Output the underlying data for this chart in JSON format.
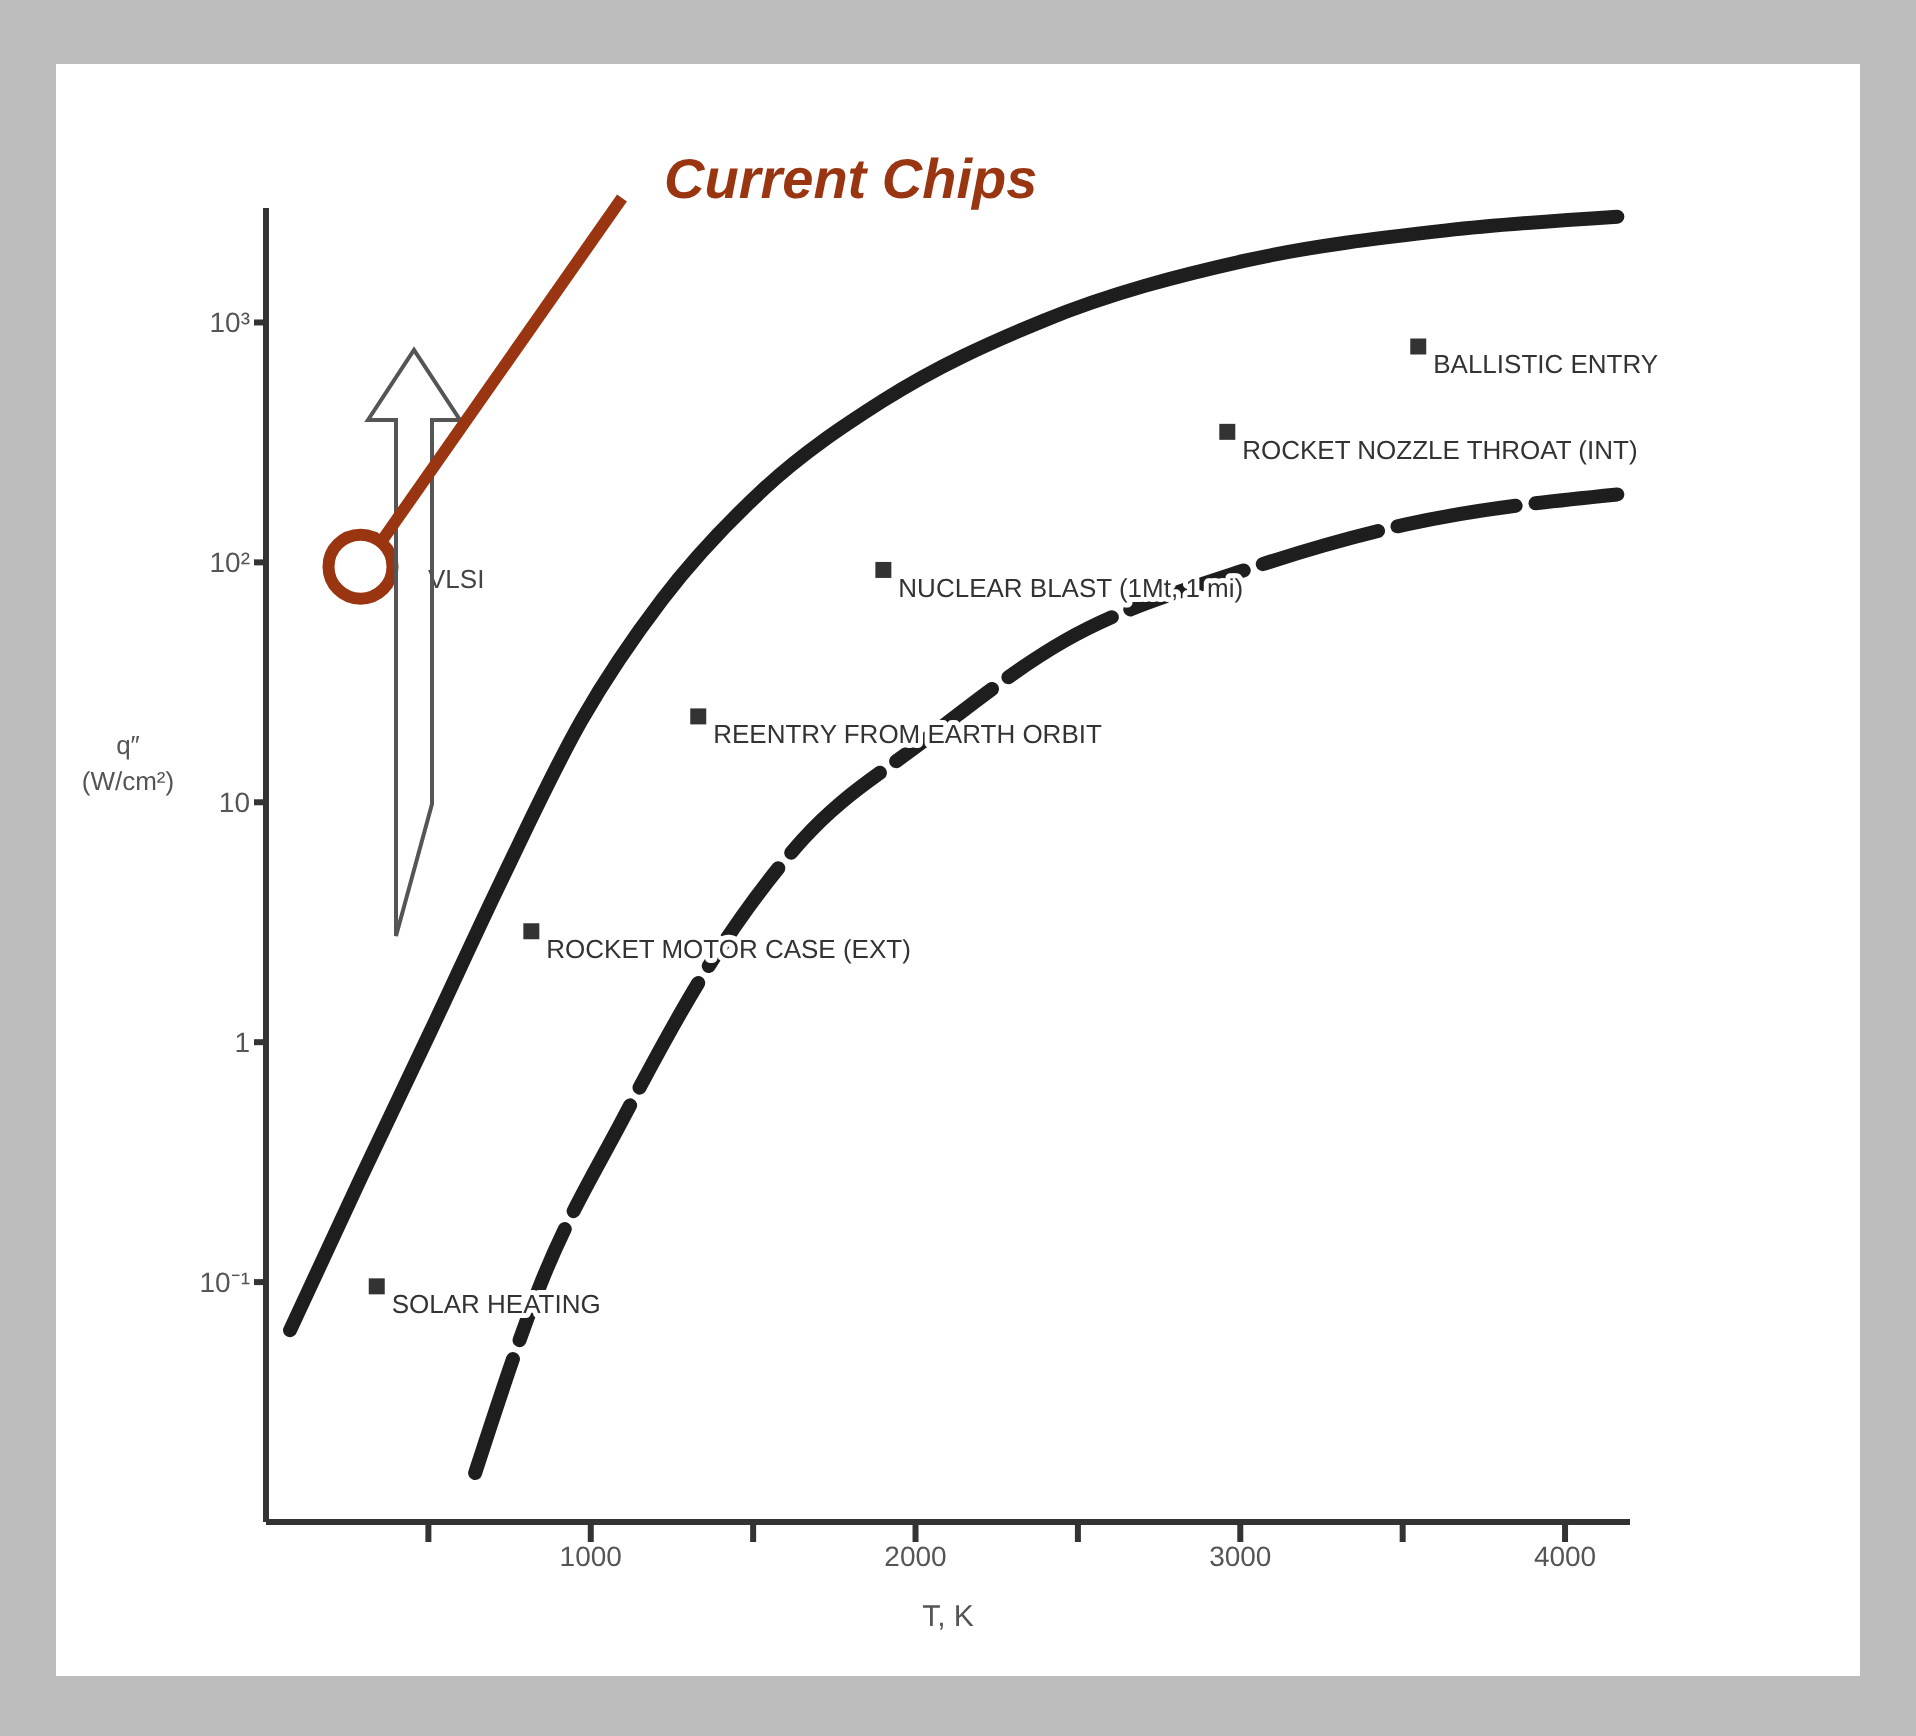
{
  "chart_data": {
    "type": "line",
    "xlabel": "T, K",
    "ylabel": "q″ (W/cm²)",
    "log": "y",
    "xlim": [
      0,
      4200
    ],
    "ylim": [
      0.01,
      3000
    ],
    "xticks": [
      {
        "value": 500,
        "label": null
      },
      1000,
      {
        "value": 1500,
        "label": null
      },
      2000,
      {
        "value": 2500,
        "label": null
      },
      3000,
      {
        "value": 3500,
        "label": null
      },
      4000
    ],
    "yticks": [
      {
        "value": 0.1,
        "label": "10⁻¹"
      },
      1,
      10,
      {
        "value": 100,
        "label": "10²"
      },
      {
        "value": 1000,
        "label": "10³"
      }
    ],
    "grid": false,
    "legend": false,
    "marker": "none",
    "series": [
      {
        "type": "line",
        "color": "#1e1e1e",
        "line_style": "solid",
        "x": [
          74,
          291,
          508,
          724,
          972,
          1220,
          1529,
          1901,
          2396,
          3015,
          3635,
          4161
        ],
        "values": [
          0.063,
          0.27,
          1.12,
          4.7,
          22,
          70,
          200,
          473,
          1020,
          1810,
          2420,
          2760
        ]
      },
      {
        "type": "line",
        "color": "#1e1e1e",
        "line_style": "dashed",
        "x": [
          644,
          848,
          1096,
          1375,
          1653,
          2025,
          2458,
          3015,
          3511,
          4161
        ],
        "values": [
          0.016,
          0.1,
          0.47,
          2.2,
          7,
          18,
          47,
          93,
          144,
          192
        ]
      },
      {
        "type": "scatter",
        "name": "Current Chips",
        "color": "#9a3512",
        "marker": "circle",
        "x": [
          291
        ],
        "values": [
          96
        ]
      },
      {
        "type": "scatter",
        "color": "#333333",
        "marker": "square",
        "x": [
          341,
          817,
          1331,
          1901,
          2960,
          3548
        ],
        "values": [
          0.096,
          2.9,
          22.8,
          93,
          350,
          794
        ],
        "value_labels": [
          "SOLAR HEATING",
          "ROCKET MOTOR CASE (EXT)",
          "REENTRY FROM EARTH ORBIT",
          "NUCLEAR BLAST (1Mt, 1 mi)",
          "ROCKET NOZZLE THROAT (INT)",
          "BALLISTIC ENTRY"
        ]
      }
    ],
    "annotations": [
      "VLSI"
    ]
  }
}
